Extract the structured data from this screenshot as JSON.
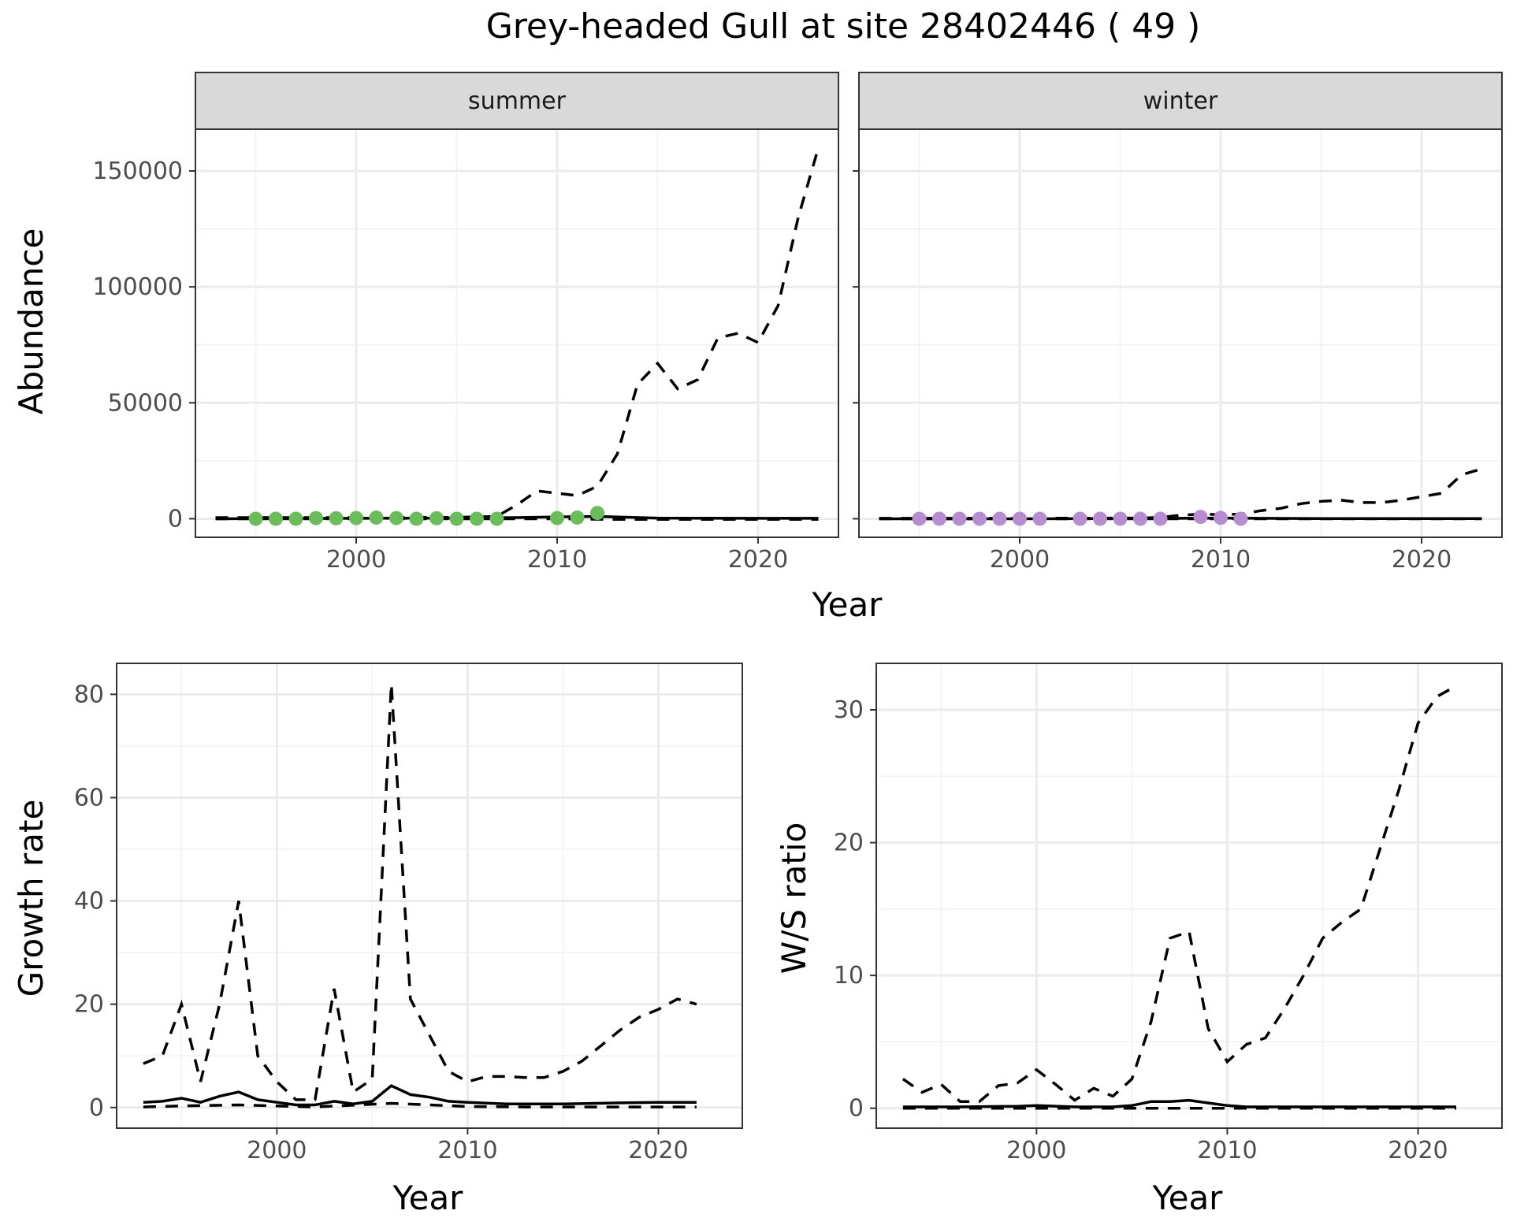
{
  "title": "Grey-headed Gull at site 28402446 ( 49 )",
  "colors": {
    "summer_points": "#6bbd5c",
    "winter_points": "#b68dd0"
  },
  "chart_data": [
    {
      "id": "abundance",
      "type": "line",
      "xlabel": "Year",
      "ylabel": "Abundance",
      "xlim": [
        1992,
        2024
      ],
      "ylim": [
        -8000,
        168000
      ],
      "x_ticks": [
        2000,
        2010,
        2020
      ],
      "y_ticks": [
        0,
        50000,
        100000,
        150000
      ],
      "grid": true,
      "facets": [
        {
          "label": "summer",
          "series": [
            {
              "role": "estimate",
              "style": "solid",
              "x": [
                1993,
                1995,
                2000,
                2005,
                2008,
                2010,
                2012,
                2015,
                2020,
                2023
              ],
              "y": [
                0,
                100,
                200,
                300,
                500,
                800,
                1000,
                300,
                200,
                200
              ]
            },
            {
              "role": "upper",
              "style": "dashed",
              "x": [
                1993,
                2000,
                2005,
                2007,
                2008,
                2009,
                2010,
                2011,
                2012,
                2013,
                2014,
                2015,
                2016,
                2017,
                2018,
                2019,
                2020,
                2021,
                2022,
                2023
              ],
              "y": [
                500,
                500,
                600,
                1000,
                6000,
                12000,
                11000,
                10000,
                14000,
                28000,
                58000,
                67000,
                56000,
                60000,
                78000,
                80000,
                76000,
                92000,
                130000,
                160000
              ]
            },
            {
              "role": "lower",
              "style": "dashed",
              "x": [
                1993,
                2000,
                2010,
                2013,
                2023
              ],
              "y": [
                0,
                0,
                0,
                -300,
                -300
              ]
            }
          ],
          "points": {
            "x": [
              1995,
              1996,
              1997,
              1998,
              1999,
              2000,
              2001,
              2002,
              2003,
              2004,
              2005,
              2006,
              2007,
              2010,
              2011,
              2012
            ],
            "y": [
              0,
              0,
              0,
              300,
              200,
              300,
              500,
              300,
              0,
              200,
              0,
              0,
              0,
              300,
              500,
              2500
            ]
          }
        },
        {
          "label": "winter",
          "series": [
            {
              "role": "estimate",
              "style": "solid",
              "x": [
                1993,
                2000,
                2005,
                2008,
                2010,
                2015,
                2020,
                2023
              ],
              "y": [
                0,
                0,
                100,
                200,
                300,
                100,
                100,
                100
              ]
            },
            {
              "role": "upper",
              "style": "dashed",
              "x": [
                1993,
                2000,
                2006,
                2007,
                2008,
                2009,
                2010,
                2011,
                2012,
                2013,
                2014,
                2015,
                2016,
                2017,
                2018,
                2019,
                2020,
                2021,
                2022,
                2023
              ],
              "y": [
                200,
                200,
                300,
                600,
                1500,
                2000,
                1800,
                2000,
                3500,
                4500,
                6500,
                7500,
                8000,
                7000,
                7000,
                8000,
                9500,
                11000,
                19000,
                21500
              ]
            },
            {
              "role": "lower",
              "style": "dashed",
              "x": [
                1993,
                2023
              ],
              "y": [
                0,
                0
              ]
            }
          ],
          "points": {
            "x": [
              1995,
              1996,
              1997,
              1998,
              1999,
              2000,
              2001,
              2003,
              2004,
              2005,
              2006,
              2007,
              2009,
              2010,
              2011
            ],
            "y": [
              0,
              0,
              0,
              0,
              0,
              0,
              0,
              0,
              0,
              0,
              0,
              0,
              800,
              400,
              0
            ]
          }
        }
      ]
    },
    {
      "id": "growth",
      "type": "line",
      "xlabel": "Year",
      "ylabel": "Growth rate",
      "xlim": [
        1991.6,
        2024.4
      ],
      "ylim": [
        -4,
        86
      ],
      "x_ticks": [
        2000,
        2010,
        2020
      ],
      "y_ticks": [
        0,
        20,
        40,
        60,
        80
      ],
      "grid": true,
      "series": [
        {
          "role": "estimate",
          "style": "solid",
          "x": [
            1993,
            1994,
            1995,
            1996,
            1997,
            1998,
            1999,
            2000,
            2001,
            2002,
            2003,
            2004,
            2005,
            2006,
            2007,
            2008,
            2009,
            2010,
            2012,
            2015,
            2018,
            2020,
            2022
          ],
          "y": [
            1,
            1.2,
            1.8,
            1,
            2.2,
            3,
            1.5,
            1,
            0.5,
            0.5,
            1.2,
            0.7,
            1.2,
            4.2,
            2.5,
            2,
            1.2,
            1,
            0.7,
            0.7,
            0.9,
            1,
            1
          ]
        },
        {
          "role": "upper",
          "style": "dashed",
          "x": [
            1993,
            1994,
            1995,
            1996,
            1997,
            1998,
            1999,
            2000,
            2001,
            2002,
            2003,
            2004,
            2005,
            2006,
            2007,
            2008,
            2009,
            2010,
            2011,
            2012,
            2013,
            2014,
            2015,
            2016,
            2017,
            2018,
            2019,
            2020,
            2021,
            2022
          ],
          "y": [
            8.5,
            10,
            20,
            5,
            20,
            40,
            10,
            5,
            1.5,
            1.5,
            23,
            3,
            5.5,
            82,
            21,
            14,
            7,
            5,
            6,
            6,
            5.8,
            5.8,
            7,
            9,
            12,
            15,
            17.5,
            19,
            21,
            20
          ]
        },
        {
          "role": "lower",
          "style": "dashed",
          "x": [
            1993,
            1995,
            1998,
            2002,
            2006,
            2010,
            2013,
            2022
          ],
          "y": [
            0.1,
            0.3,
            0.5,
            0.1,
            0.8,
            0.2,
            0.1,
            0.1
          ]
        }
      ]
    },
    {
      "id": "ratio",
      "type": "line",
      "xlabel": "Year",
      "ylabel": "W/S ratio",
      "xlim": [
        1991.6,
        2024.4
      ],
      "ylim": [
        -1.5,
        33.5
      ],
      "x_ticks": [
        2000,
        2010,
        2020
      ],
      "y_ticks": [
        0,
        10,
        20,
        30
      ],
      "grid": true,
      "series": [
        {
          "role": "estimate",
          "style": "solid",
          "x": [
            1993,
            1996,
            1999,
            2000,
            2002,
            2004,
            2005,
            2006,
            2007,
            2008,
            2009,
            2010,
            2011,
            2015,
            2022
          ],
          "y": [
            0.1,
            0.1,
            0.15,
            0.2,
            0.1,
            0.1,
            0.2,
            0.5,
            0.5,
            0.6,
            0.4,
            0.2,
            0.1,
            0.1,
            0.1
          ]
        },
        {
          "role": "upper",
          "style": "dashed",
          "x": [
            1993,
            1994,
            1995,
            1996,
            1997,
            1998,
            1999,
            2000,
            2001,
            2002,
            2003,
            2004,
            2005,
            2006,
            2007,
            2008,
            2009,
            2010,
            2011,
            2012,
            2013,
            2014,
            2015,
            2016,
            2017,
            2018,
            2019,
            2020,
            2021,
            2022
          ],
          "y": [
            2.2,
            1.2,
            1.8,
            0.5,
            0.5,
            1.7,
            1.9,
            2.9,
            1.8,
            0.6,
            1.5,
            0.9,
            2.2,
            6.5,
            12.8,
            13.3,
            6,
            3.5,
            4.8,
            5.3,
            7.5,
            10,
            12.8,
            14,
            15,
            19.5,
            24,
            29,
            31,
            31.8
          ]
        },
        {
          "role": "lower",
          "style": "dashed",
          "x": [
            1993,
            2022
          ],
          "y": [
            0,
            0
          ]
        }
      ]
    }
  ]
}
